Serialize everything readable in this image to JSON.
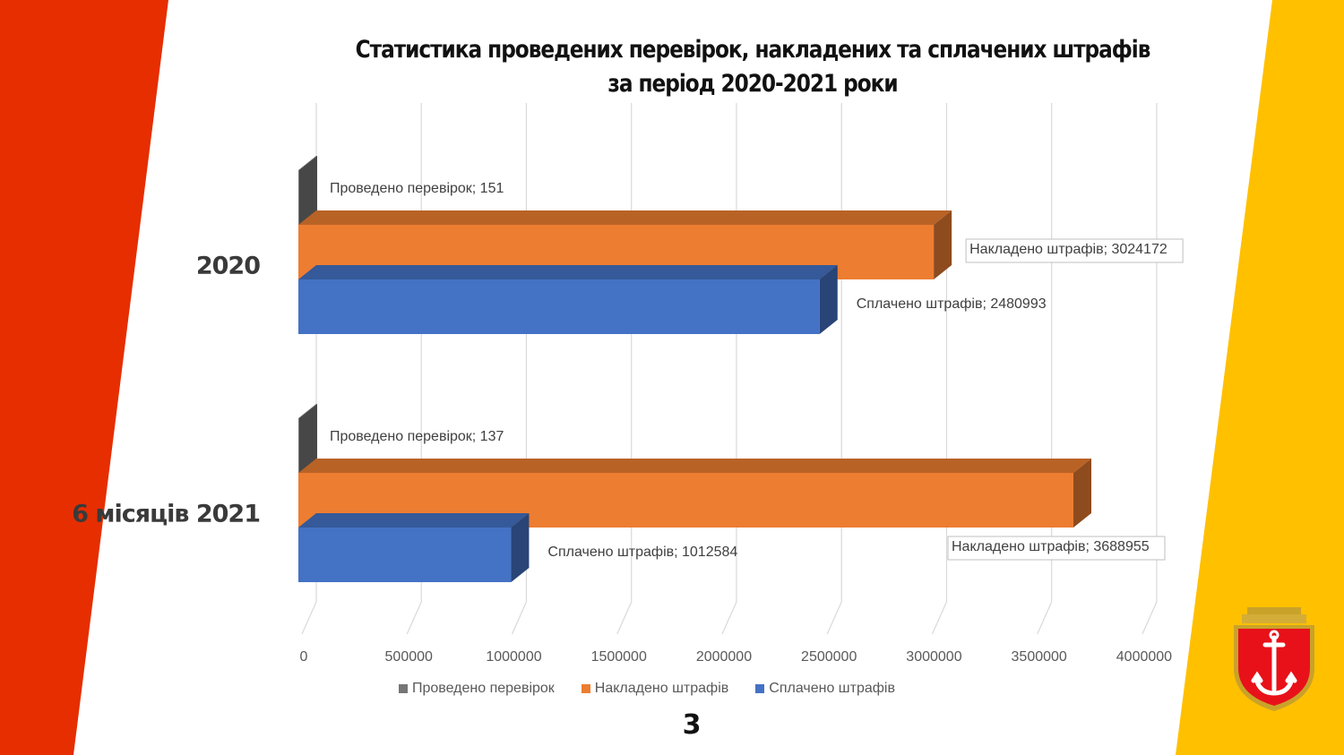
{
  "title_line1": "Статистика проведених перевірок, накладених та сплачених штрафів",
  "title_line2": "за період 2020-2021 роки",
  "page_number": "3",
  "colors": {
    "left_band": "#e62e00",
    "right_band": "#ffc000",
    "series_checks": "#767676",
    "series_fines_imposed": "#ed7d31",
    "series_fines_paid": "#4472c4"
  },
  "emblem_icon": "odesa-coat-of-arms-icon",
  "chart_data": {
    "type": "bar",
    "orientation": "horizontal",
    "style": "3d",
    "title": "Статистика проведених перевірок, накладених та сплачених штрафів за період 2020-2021 роки",
    "categories": [
      "2020",
      "6 місяців 2021"
    ],
    "series": [
      {
        "name": "Проведено перевірок",
        "values": [
          151,
          137
        ],
        "data_labels": [
          "Проведено перевірок; 151",
          "Проведено перевірок; 137"
        ]
      },
      {
        "name": "Накладено штрафів",
        "values": [
          3024172,
          3688955
        ],
        "data_labels": [
          "Накладено штрафів; 3024172",
          "Накладено штрафів; 3688955"
        ]
      },
      {
        "name": "Сплачено штрафів",
        "values": [
          2480993,
          1012584
        ],
        "data_labels": [
          "Сплачено штрафів; 2480993",
          "Сплачено штрафів; 1012584"
        ]
      }
    ],
    "x_ticks": [
      "0",
      "500000",
      "1000000",
      "1500000",
      "2000000",
      "2500000",
      "3000000",
      "3500000",
      "4000000"
    ],
    "xlim": [
      0,
      4000000
    ],
    "grid": true,
    "legend_position": "bottom"
  }
}
